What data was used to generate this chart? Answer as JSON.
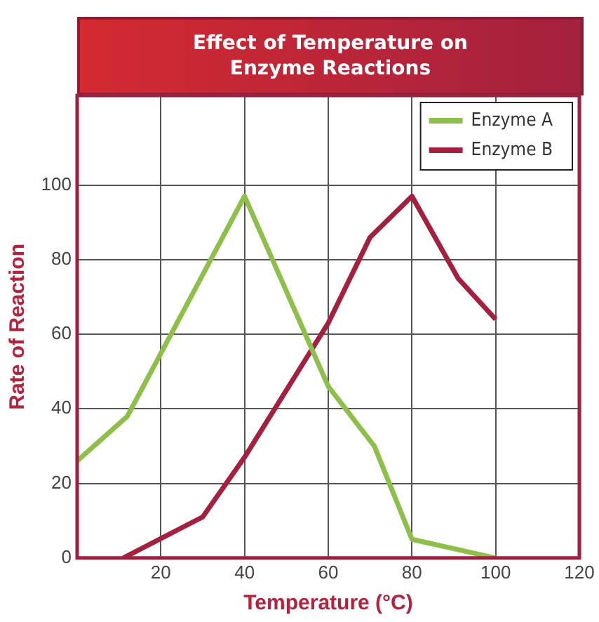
{
  "chart_data": {
    "type": "line",
    "title": "Effect of Temperature on Enzyme Reactions",
    "xlabel": "Temperature (°C)",
    "ylabel": "Rate of Reaction",
    "xlim": [
      0,
      120
    ],
    "xticks": [
      20,
      40,
      60,
      80,
      100,
      120
    ],
    "ylim": [
      0,
      124
    ],
    "yticks": [
      0,
      20,
      40,
      60,
      80,
      100
    ],
    "grid": true,
    "legend": "top right",
    "marker": "none",
    "line_style": "solid",
    "series": [
      {
        "name": "Enzyme A",
        "color": "#8dbf4a",
        "x": [
          0,
          12,
          40,
          60,
          71,
          80,
          100
        ],
        "values": [
          26,
          38,
          97,
          46,
          30,
          5,
          0
        ]
      },
      {
        "name": "Enzyme B",
        "color": "#a3213f",
        "x": [
          11,
          30,
          40,
          60,
          70,
          80,
          91,
          100
        ],
        "values": [
          0,
          11,
          27,
          63,
          86,
          97,
          75,
          64
        ]
      }
    ]
  }
}
